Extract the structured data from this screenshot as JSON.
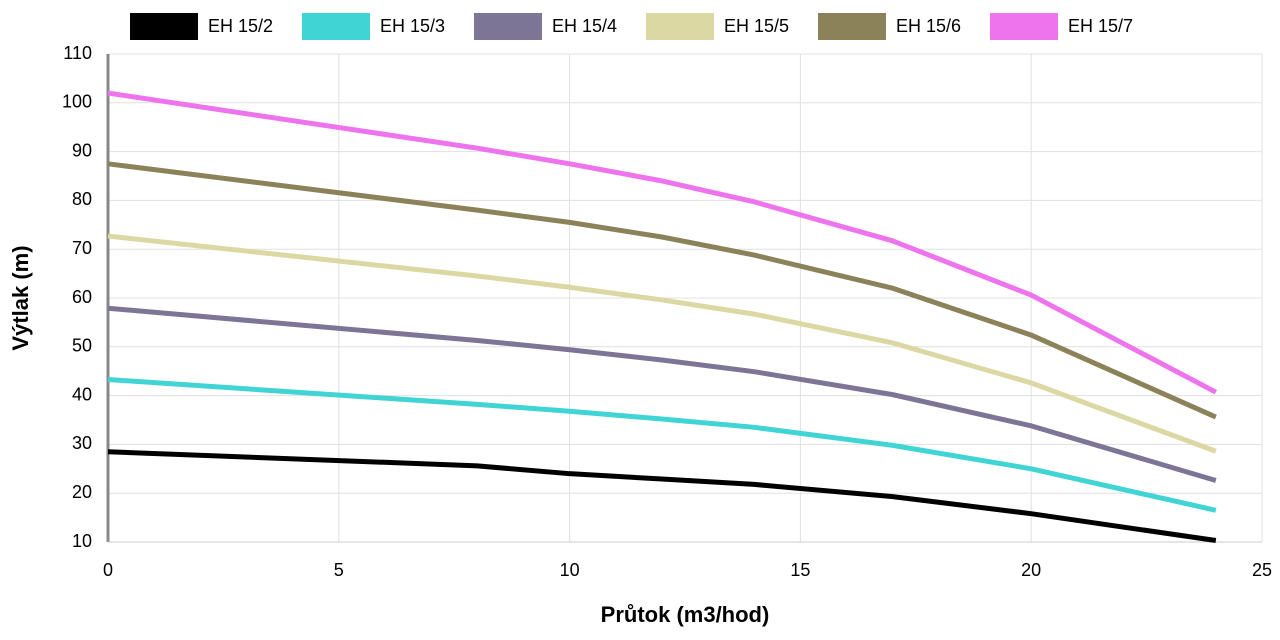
{
  "chart_data": {
    "type": "line",
    "x_label": "Průtok (m3/hod)",
    "y_label": "Výtlak (m)",
    "x": [
      0,
      8,
      10,
      12,
      14,
      17,
      20,
      24
    ],
    "series": [
      {
        "name": "EH 15/2",
        "color": "#000000",
        "values": [
          28.5,
          25.6,
          24,
          22.9,
          21.8,
          19.3,
          15.8,
          10.3
        ]
      },
      {
        "name": "EH 15/3",
        "color": "#40d4d4",
        "values": [
          43.3,
          38.2,
          36.8,
          35.2,
          33.5,
          29.8,
          25,
          16.5
        ]
      },
      {
        "name": "EH 15/4",
        "color": "#7d7595",
        "values": [
          57.9,
          51.3,
          49.4,
          47.3,
          44.9,
          40.2,
          33.8,
          22.6
        ]
      },
      {
        "name": "EH 15/5",
        "color": "#dcd8a4",
        "values": [
          72.7,
          64.5,
          62.2,
          59.6,
          56.7,
          50.8,
          42.6,
          28.6
        ]
      },
      {
        "name": "EH 15/6",
        "color": "#8b825a",
        "values": [
          87.5,
          78,
          75.5,
          72.5,
          68.8,
          62,
          52.4,
          35.6
        ]
      },
      {
        "name": "EH 15/7",
        "color": "#ee74ee",
        "values": [
          102,
          90.7,
          87.5,
          84,
          79.7,
          71.7,
          60.6,
          40.7
        ]
      }
    ],
    "xlim": [
      0,
      25
    ],
    "xticks": [
      0,
      5,
      10,
      15,
      20,
      25
    ],
    "ylim": [
      10,
      110
    ],
    "yticks": [
      10,
      20,
      30,
      40,
      50,
      60,
      70,
      80,
      90,
      100,
      110
    ],
    "grid": true,
    "legend": "top"
  }
}
